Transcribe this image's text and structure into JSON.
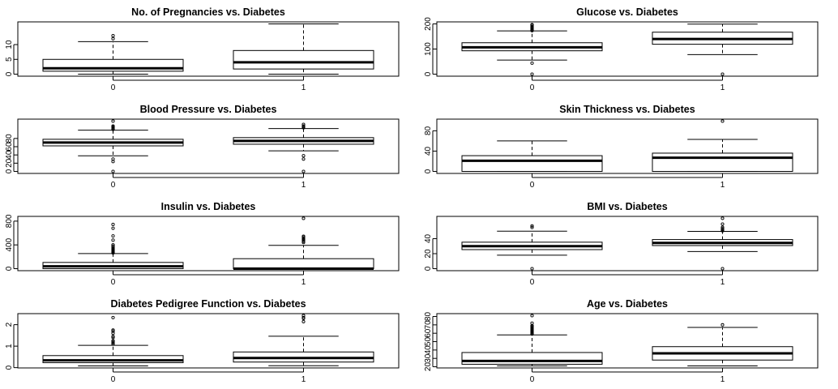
{
  "chart_data": [
    {
      "type": "boxplot",
      "title": "No. of Pregnancies vs. Diabetes",
      "categories": [
        "0",
        "1"
      ],
      "ylim": [
        0,
        17
      ],
      "yticks": [
        0,
        5,
        10
      ],
      "boxes": [
        {
          "category": "0",
          "whisker_low": 0,
          "q1": 1,
          "median": 2,
          "q3": 5,
          "whisker_high": 11,
          "outliers": [
            12,
            13
          ]
        },
        {
          "category": "1",
          "whisker_low": 0,
          "q1": 1.75,
          "median": 4,
          "q3": 8,
          "whisker_high": 17,
          "outliers": []
        }
      ]
    },
    {
      "type": "boxplot",
      "title": "Glucose vs. Diabetes",
      "categories": [
        "0",
        "1"
      ],
      "ylim": [
        0,
        200
      ],
      "yticks": [
        0,
        100,
        200
      ],
      "boxes": [
        {
          "category": "0",
          "whisker_low": 56,
          "q1": 93,
          "median": 107,
          "q3": 125,
          "whisker_high": 172,
          "outliers": [
            0,
            44,
            173,
            176,
            180,
            183,
            186,
            189,
            194,
            196,
            197
          ]
        },
        {
          "category": "1",
          "whisker_low": 78,
          "q1": 119,
          "median": 140,
          "q3": 167,
          "whisker_high": 199,
          "outliers": [
            0
          ]
        }
      ]
    },
    {
      "type": "boxplot",
      "title": "Blood Pressure vs. Diabetes",
      "categories": [
        "0",
        "1"
      ],
      "ylim": [
        0,
        122
      ],
      "yticks": [
        0,
        20,
        40,
        60,
        80
      ],
      "boxes": [
        {
          "category": "0",
          "whisker_low": 38,
          "q1": 62,
          "median": 70,
          "q3": 78,
          "whisker_high": 100,
          "outliers": [
            0,
            24,
            30,
            102,
            104,
            106,
            108,
            110,
            122
          ]
        },
        {
          "category": "1",
          "whisker_low": 50,
          "q1": 66,
          "median": 74,
          "q3": 82,
          "whisker_high": 104,
          "outliers": [
            0,
            30,
            38,
            106,
            108,
            110,
            114
          ]
        }
      ]
    },
    {
      "type": "boxplot",
      "title": "Skin Thickness vs. Diabetes",
      "categories": [
        "0",
        "1"
      ],
      "ylim": [
        0,
        99
      ],
      "yticks": [
        0,
        40,
        80
      ],
      "boxes": [
        {
          "category": "0",
          "whisker_low": 0,
          "q1": 0,
          "median": 21,
          "q3": 31,
          "whisker_high": 60,
          "outliers": []
        },
        {
          "category": "1",
          "whisker_low": 0,
          "q1": 0,
          "median": 27,
          "q3": 36,
          "whisker_high": 63,
          "outliers": [
            99
          ]
        }
      ]
    },
    {
      "type": "boxplot",
      "title": "Insulin vs. Diabetes",
      "categories": [
        "0",
        "1"
      ],
      "ylim": [
        0,
        846
      ],
      "yticks": [
        0,
        400,
        800
      ],
      "boxes": [
        {
          "category": "0",
          "whisker_low": 0,
          "q1": 0,
          "median": 39,
          "q3": 105,
          "whisker_high": 255,
          "outliers": [
            265,
            270,
            280,
            290,
            300,
            310,
            320,
            330,
            340,
            360,
            380,
            400,
            480,
            550,
            680,
            744
          ]
        },
        {
          "category": "1",
          "whisker_low": 0,
          "q1": 0,
          "median": 0,
          "q3": 168,
          "whisker_high": 392,
          "outliers": [
            440,
            460,
            480,
            495,
            510,
            530,
            545,
            846
          ]
        }
      ]
    },
    {
      "type": "boxplot",
      "title": "BMI vs. Diabetes",
      "categories": [
        "0",
        "1"
      ],
      "ylim": [
        0,
        67
      ],
      "yticks": [
        0,
        20,
        40
      ],
      "boxes": [
        {
          "category": "0",
          "whisker_low": 18,
          "q1": 25.4,
          "median": 30,
          "q3": 35.3,
          "whisker_high": 50,
          "outliers": [
            0,
            55,
            57
          ]
        },
        {
          "category": "1",
          "whisker_low": 22.9,
          "q1": 30.8,
          "median": 34.3,
          "q3": 38.8,
          "whisker_high": 49.7,
          "outliers": [
            0,
            50.5,
            52.3,
            53.2,
            55,
            59.4,
            67.1
          ]
        }
      ]
    },
    {
      "type": "boxplot",
      "title": "Diabetes Pedigree Function vs. Diabetes",
      "categories": [
        "0",
        "1"
      ],
      "ylim": [
        0.08,
        2.42
      ],
      "yticks": [
        0.0,
        1.0,
        2.0
      ],
      "boxes": [
        {
          "category": "0",
          "whisker_low": 0.08,
          "q1": 0.23,
          "median": 0.34,
          "q3": 0.56,
          "whisker_high": 1.04,
          "outliers": [
            1.1,
            1.15,
            1.2,
            1.25,
            1.4,
            1.45,
            1.6,
            1.7,
            1.75,
            2.33
          ]
        },
        {
          "category": "1",
          "whisker_low": 0.09,
          "q1": 0.26,
          "median": 0.45,
          "q3": 0.73,
          "whisker_high": 1.46,
          "outliers": [
            2.14,
            2.29,
            2.33,
            2.42
          ]
        }
      ]
    },
    {
      "type": "boxplot",
      "title": "Age vs. Diabetes",
      "categories": [
        "0",
        "1"
      ],
      "ylim": [
        21,
        81
      ],
      "yticks": [
        20,
        30,
        40,
        50,
        60,
        70,
        80
      ],
      "boxes": [
        {
          "category": "0",
          "whisker_low": 21,
          "q1": 23,
          "median": 27,
          "q3": 37,
          "whisker_high": 58,
          "outliers": [
            59,
            60,
            61,
            62,
            63,
            64,
            65,
            66,
            67,
            68,
            69,
            72,
            81
          ]
        },
        {
          "category": "1",
          "whisker_low": 21,
          "q1": 28,
          "median": 36,
          "q3": 44,
          "whisker_high": 67,
          "outliers": [
            70
          ]
        }
      ]
    }
  ]
}
